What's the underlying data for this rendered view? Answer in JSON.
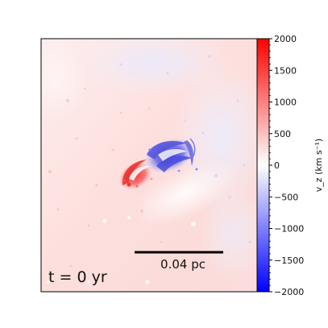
{
  "image": {
    "time_label": "t = 0 yr",
    "scalebar_label": "0.04 pc",
    "colors": {
      "positive": "#ff0000",
      "neutral": "#ffffff",
      "negative": "#0000ff",
      "background_tint": "#fde3e1"
    }
  },
  "colorbar": {
    "label": "v_z (km s⁻¹)",
    "ticks": [
      "2000",
      "1500",
      "1000",
      "500",
      "0",
      "−500",
      "−1000",
      "−1500",
      "−2000"
    ],
    "range": [
      -2000,
      2000
    ]
  }
}
